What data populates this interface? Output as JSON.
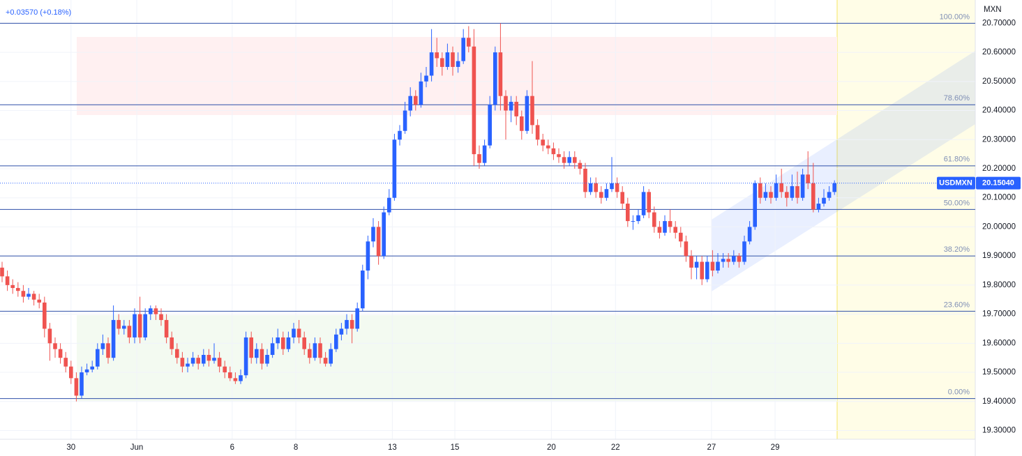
{
  "chart_data": {
    "type": "candlestick",
    "change_text": "+0.03570 (+0.18%)",
    "currency": "MXN",
    "symbol": "USDMXN",
    "last_price": {
      "value": 20.1504,
      "label": "20.15040"
    },
    "up_color": "#2962ff",
    "down_color": "#ef5350",
    "fib_color": "#2e4fa8",
    "grid": true,
    "ylim": [
      19.27,
      20.78
    ],
    "yticks": [
      {
        "value": 19.3,
        "label": "19.30000"
      },
      {
        "value": 19.4,
        "label": "19.40000"
      },
      {
        "value": 19.5,
        "label": "19.50000"
      },
      {
        "value": 19.6,
        "label": "19.60000"
      },
      {
        "value": 19.7,
        "label": "19.70000"
      },
      {
        "value": 19.8,
        "label": "19.80000"
      },
      {
        "value": 19.9,
        "label": "19.90000"
      },
      {
        "value": 20.0,
        "label": "20.00000"
      },
      {
        "value": 20.1,
        "label": "20.10000"
      },
      {
        "value": 20.2,
        "label": "20.20000"
      },
      {
        "value": 20.3,
        "label": "20.30000"
      },
      {
        "value": 20.4,
        "label": "20.40000"
      },
      {
        "value": 20.5,
        "label": "20.50000"
      },
      {
        "value": 20.6,
        "label": "20.60000"
      },
      {
        "value": 20.7,
        "label": "20.70000"
      }
    ],
    "xticks": [
      {
        "value": 13,
        "label": "30"
      },
      {
        "value": 25.4,
        "label": "Jun"
      },
      {
        "value": 43.4,
        "label": "6"
      },
      {
        "value": 55.4,
        "label": "8"
      },
      {
        "value": 73.6,
        "label": "13"
      },
      {
        "value": 85.4,
        "label": "15"
      },
      {
        "value": 103.6,
        "label": "20"
      },
      {
        "value": 115.7,
        "label": "22"
      },
      {
        "value": 133.8,
        "label": "27"
      },
      {
        "value": 145.8,
        "label": "29"
      }
    ],
    "fib_levels": [
      {
        "label": "100.00%",
        "price": 20.7
      },
      {
        "label": "78.60%",
        "price": 20.42
      },
      {
        "label": "61.80%",
        "price": 20.21
      },
      {
        "label": "50.00%",
        "price": 20.06
      },
      {
        "label": "38.20%",
        "price": 19.9
      },
      {
        "label": "23.60%",
        "price": 19.71
      },
      {
        "label": "0.00%",
        "price": 19.41
      }
    ],
    "ohlc": [
      [
        19.86,
        19.88,
        19.81,
        19.83
      ],
      [
        19.83,
        19.85,
        19.78,
        19.8
      ],
      [
        19.8,
        19.82,
        19.77,
        19.79
      ],
      [
        19.79,
        19.81,
        19.76,
        19.78
      ],
      [
        19.78,
        19.8,
        19.74,
        19.76
      ],
      [
        19.76,
        19.79,
        19.75,
        19.77
      ],
      [
        19.77,
        19.78,
        19.73,
        19.75
      ],
      [
        19.75,
        19.77,
        19.72,
        19.74
      ],
      [
        19.74,
        19.76,
        19.62,
        19.65
      ],
      [
        19.65,
        19.67,
        19.54,
        19.6
      ],
      [
        19.6,
        19.62,
        19.55,
        19.58
      ],
      [
        19.58,
        19.6,
        19.53,
        19.55
      ],
      [
        19.55,
        19.57,
        19.5,
        19.52
      ],
      [
        19.52,
        19.54,
        19.46,
        19.48
      ],
      [
        19.48,
        19.5,
        19.4,
        19.42
      ],
      [
        19.42,
        19.52,
        19.41,
        19.5
      ],
      [
        19.5,
        19.53,
        19.49,
        19.51
      ],
      [
        19.51,
        19.54,
        19.5,
        19.52
      ],
      [
        19.52,
        19.6,
        19.51,
        19.58
      ],
      [
        19.58,
        19.63,
        19.56,
        19.6
      ],
      [
        19.6,
        19.62,
        19.53,
        19.55
      ],
      [
        19.55,
        19.73,
        19.54,
        19.68
      ],
      [
        19.68,
        19.7,
        19.63,
        19.65
      ],
      [
        19.65,
        19.68,
        19.63,
        19.66
      ],
      [
        19.66,
        19.68,
        19.6,
        19.62
      ],
      [
        19.62,
        19.72,
        19.6,
        19.7
      ],
      [
        19.7,
        19.76,
        19.6,
        19.62
      ],
      [
        19.62,
        19.72,
        19.61,
        19.7
      ],
      [
        19.7,
        19.73,
        19.68,
        19.72
      ],
      [
        19.72,
        19.73,
        19.68,
        19.7
      ],
      [
        19.7,
        19.72,
        19.66,
        19.68
      ],
      [
        19.68,
        19.7,
        19.6,
        19.62
      ],
      [
        19.62,
        19.64,
        19.56,
        19.58
      ],
      [
        19.58,
        19.6,
        19.53,
        19.55
      ],
      [
        19.55,
        19.57,
        19.5,
        19.52
      ],
      [
        19.52,
        19.55,
        19.5,
        19.53
      ],
      [
        19.53,
        19.57,
        19.52,
        19.55
      ],
      [
        19.55,
        19.56,
        19.51,
        19.53
      ],
      [
        19.53,
        19.58,
        19.52,
        19.56
      ],
      [
        19.56,
        19.58,
        19.52,
        19.54
      ],
      [
        19.54,
        19.6,
        19.53,
        19.55
      ],
      [
        19.55,
        19.57,
        19.5,
        19.52
      ],
      [
        19.52,
        19.54,
        19.48,
        19.5
      ],
      [
        19.5,
        19.52,
        19.47,
        19.48
      ],
      [
        19.48,
        19.5,
        19.46,
        19.47
      ],
      [
        19.47,
        19.51,
        19.46,
        19.49
      ],
      [
        19.49,
        19.64,
        19.48,
        19.62
      ],
      [
        19.62,
        19.64,
        19.53,
        19.55
      ],
      [
        19.55,
        19.6,
        19.53,
        19.58
      ],
      [
        19.58,
        19.6,
        19.51,
        19.53
      ],
      [
        19.53,
        19.58,
        19.52,
        19.56
      ],
      [
        19.56,
        19.62,
        19.55,
        19.6
      ],
      [
        19.6,
        19.65,
        19.58,
        19.62
      ],
      [
        19.62,
        19.64,
        19.56,
        19.58
      ],
      [
        19.58,
        19.64,
        19.57,
        19.62
      ],
      [
        19.62,
        19.67,
        19.6,
        19.65
      ],
      [
        19.65,
        19.68,
        19.6,
        19.62
      ],
      [
        19.62,
        19.64,
        19.56,
        19.58
      ],
      [
        19.58,
        19.6,
        19.53,
        19.55
      ],
      [
        19.55,
        19.62,
        19.54,
        19.6
      ],
      [
        19.6,
        19.62,
        19.53,
        19.55
      ],
      [
        19.55,
        19.57,
        19.52,
        19.53
      ],
      [
        19.53,
        19.6,
        19.52,
        19.58
      ],
      [
        19.58,
        19.65,
        19.57,
        19.63
      ],
      [
        19.63,
        19.67,
        19.61,
        19.65
      ],
      [
        19.65,
        19.7,
        19.63,
        19.68
      ],
      [
        19.68,
        19.7,
        19.6,
        19.65
      ],
      [
        19.65,
        19.74,
        19.64,
        19.72
      ],
      [
        19.72,
        19.87,
        19.71,
        19.85
      ],
      [
        19.85,
        19.97,
        19.82,
        19.95
      ],
      [
        19.95,
        20.03,
        19.93,
        20.0
      ],
      [
        20.0,
        20.02,
        19.87,
        19.9
      ],
      [
        19.9,
        20.07,
        19.89,
        20.05
      ],
      [
        20.05,
        20.13,
        20.04,
        20.1
      ],
      [
        20.1,
        20.32,
        20.09,
        20.3
      ],
      [
        20.3,
        20.35,
        20.28,
        20.33
      ],
      [
        20.33,
        20.43,
        20.32,
        20.4
      ],
      [
        20.4,
        20.48,
        20.38,
        20.45
      ],
      [
        20.45,
        20.47,
        20.4,
        20.42
      ],
      [
        20.42,
        20.53,
        20.41,
        20.5
      ],
      [
        20.5,
        20.55,
        20.48,
        20.52
      ],
      [
        20.52,
        20.68,
        20.5,
        20.6
      ],
      [
        20.6,
        20.65,
        20.55,
        20.58
      ],
      [
        20.58,
        20.6,
        20.52,
        20.55
      ],
      [
        20.55,
        20.63,
        20.54,
        20.6
      ],
      [
        20.6,
        20.62,
        20.52,
        20.55
      ],
      [
        20.55,
        20.6,
        20.53,
        20.57
      ],
      [
        20.57,
        20.68,
        20.56,
        20.65
      ],
      [
        20.65,
        20.69,
        20.6,
        20.62
      ],
      [
        20.62,
        20.68,
        20.21,
        20.25
      ],
      [
        20.25,
        20.28,
        20.2,
        20.22
      ],
      [
        20.22,
        20.3,
        20.21,
        20.28
      ],
      [
        20.28,
        20.45,
        20.27,
        20.42
      ],
      [
        20.42,
        20.62,
        20.4,
        20.6
      ],
      [
        20.6,
        20.7,
        20.4,
        20.45
      ],
      [
        20.45,
        20.47,
        20.3,
        20.4
      ],
      [
        20.4,
        20.45,
        20.36,
        20.43
      ],
      [
        20.43,
        20.45,
        20.35,
        20.38
      ],
      [
        20.38,
        20.4,
        20.3,
        20.33
      ],
      [
        20.33,
        20.47,
        20.32,
        20.45
      ],
      [
        20.45,
        20.57,
        20.32,
        20.35
      ],
      [
        20.35,
        20.37,
        20.28,
        20.3
      ],
      [
        20.3,
        20.32,
        20.26,
        20.28
      ],
      [
        20.28,
        20.3,
        20.25,
        20.27
      ],
      [
        20.27,
        20.29,
        20.23,
        20.25
      ],
      [
        20.25,
        20.27,
        20.22,
        20.24
      ],
      [
        20.24,
        20.26,
        20.2,
        20.22
      ],
      [
        20.22,
        20.26,
        20.21,
        20.24
      ],
      [
        20.24,
        20.26,
        20.2,
        20.22
      ],
      [
        20.22,
        20.23,
        20.18,
        20.2
      ],
      [
        20.2,
        20.22,
        20.1,
        20.12
      ],
      [
        20.12,
        20.17,
        20.11,
        20.15
      ],
      [
        20.15,
        20.17,
        20.1,
        20.12
      ],
      [
        20.12,
        20.14,
        20.08,
        20.1
      ],
      [
        20.1,
        20.15,
        20.09,
        20.13
      ],
      [
        20.13,
        20.24,
        20.12,
        20.15
      ],
      [
        20.15,
        20.17,
        20.1,
        20.12
      ],
      [
        20.12,
        20.14,
        20.06,
        20.08
      ],
      [
        20.08,
        20.1,
        20.0,
        20.02
      ],
      [
        20.02,
        20.04,
        19.99,
        20.02
      ],
      [
        20.02,
        20.06,
        20.01,
        20.04
      ],
      [
        20.04,
        20.14,
        20.03,
        20.12
      ],
      [
        20.12,
        20.13,
        20.03,
        20.05
      ],
      [
        20.05,
        20.07,
        19.98,
        20.0
      ],
      [
        20.0,
        20.02,
        19.96,
        19.98
      ],
      [
        19.98,
        20.04,
        19.97,
        20.02
      ],
      [
        20.02,
        20.06,
        19.98,
        20.0
      ],
      [
        20.0,
        20.02,
        19.96,
        19.98
      ],
      [
        19.98,
        20.0,
        19.93,
        19.95
      ],
      [
        19.95,
        19.97,
        19.88,
        19.9
      ],
      [
        19.9,
        19.92,
        19.82,
        19.86
      ],
      [
        19.86,
        19.9,
        19.82,
        19.88
      ],
      [
        19.88,
        19.9,
        19.8,
        19.82
      ],
      [
        19.82,
        19.9,
        19.81,
        19.88
      ],
      [
        19.88,
        19.92,
        19.83,
        19.85
      ],
      [
        19.85,
        19.91,
        19.84,
        19.88
      ],
      [
        19.88,
        19.91,
        19.86,
        19.89
      ],
      [
        19.89,
        19.91,
        19.86,
        19.88
      ],
      [
        19.88,
        19.92,
        19.87,
        19.9
      ],
      [
        19.9,
        19.91,
        19.86,
        19.88
      ],
      [
        19.88,
        19.97,
        19.87,
        19.95
      ],
      [
        19.95,
        20.02,
        19.94,
        20.0
      ],
      [
        20.0,
        20.16,
        19.99,
        20.15
      ],
      [
        20.15,
        20.17,
        20.08,
        20.1
      ],
      [
        20.1,
        20.15,
        20.09,
        20.12
      ],
      [
        20.12,
        20.14,
        20.08,
        20.1
      ],
      [
        20.1,
        20.18,
        20.09,
        20.15
      ],
      [
        20.15,
        20.2,
        20.1,
        20.12
      ],
      [
        20.12,
        20.14,
        20.07,
        20.1
      ],
      [
        20.1,
        20.18,
        20.09,
        20.14
      ],
      [
        20.14,
        20.19,
        20.08,
        20.1
      ],
      [
        20.1,
        20.2,
        20.09,
        20.18
      ],
      [
        20.18,
        20.26,
        20.13,
        20.15
      ],
      [
        20.15,
        20.22,
        20.05,
        20.06
      ],
      [
        20.06,
        20.1,
        20.05,
        20.08
      ],
      [
        20.08,
        20.13,
        20.07,
        20.1
      ],
      [
        20.1,
        20.14,
        20.09,
        20.12
      ],
      [
        20.12,
        20.16,
        20.11,
        20.15
      ]
    ]
  }
}
